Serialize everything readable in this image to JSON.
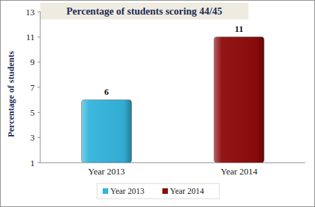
{
  "chart_data": {
    "type": "bar",
    "title": "Percentage of students scoring 44/45",
    "y_label": "Percentage of students",
    "categories": [
      "Year 2013",
      "Year 2014"
    ],
    "values": [
      6,
      11
    ],
    "colors": [
      "#33b4dd",
      "#8e0b0b"
    ],
    "ylim": [
      1,
      13
    ],
    "yticks": [
      1,
      3,
      5,
      7,
      9,
      11,
      13
    ],
    "grid": false,
    "data_labels": true,
    "legend": "bottom"
  }
}
